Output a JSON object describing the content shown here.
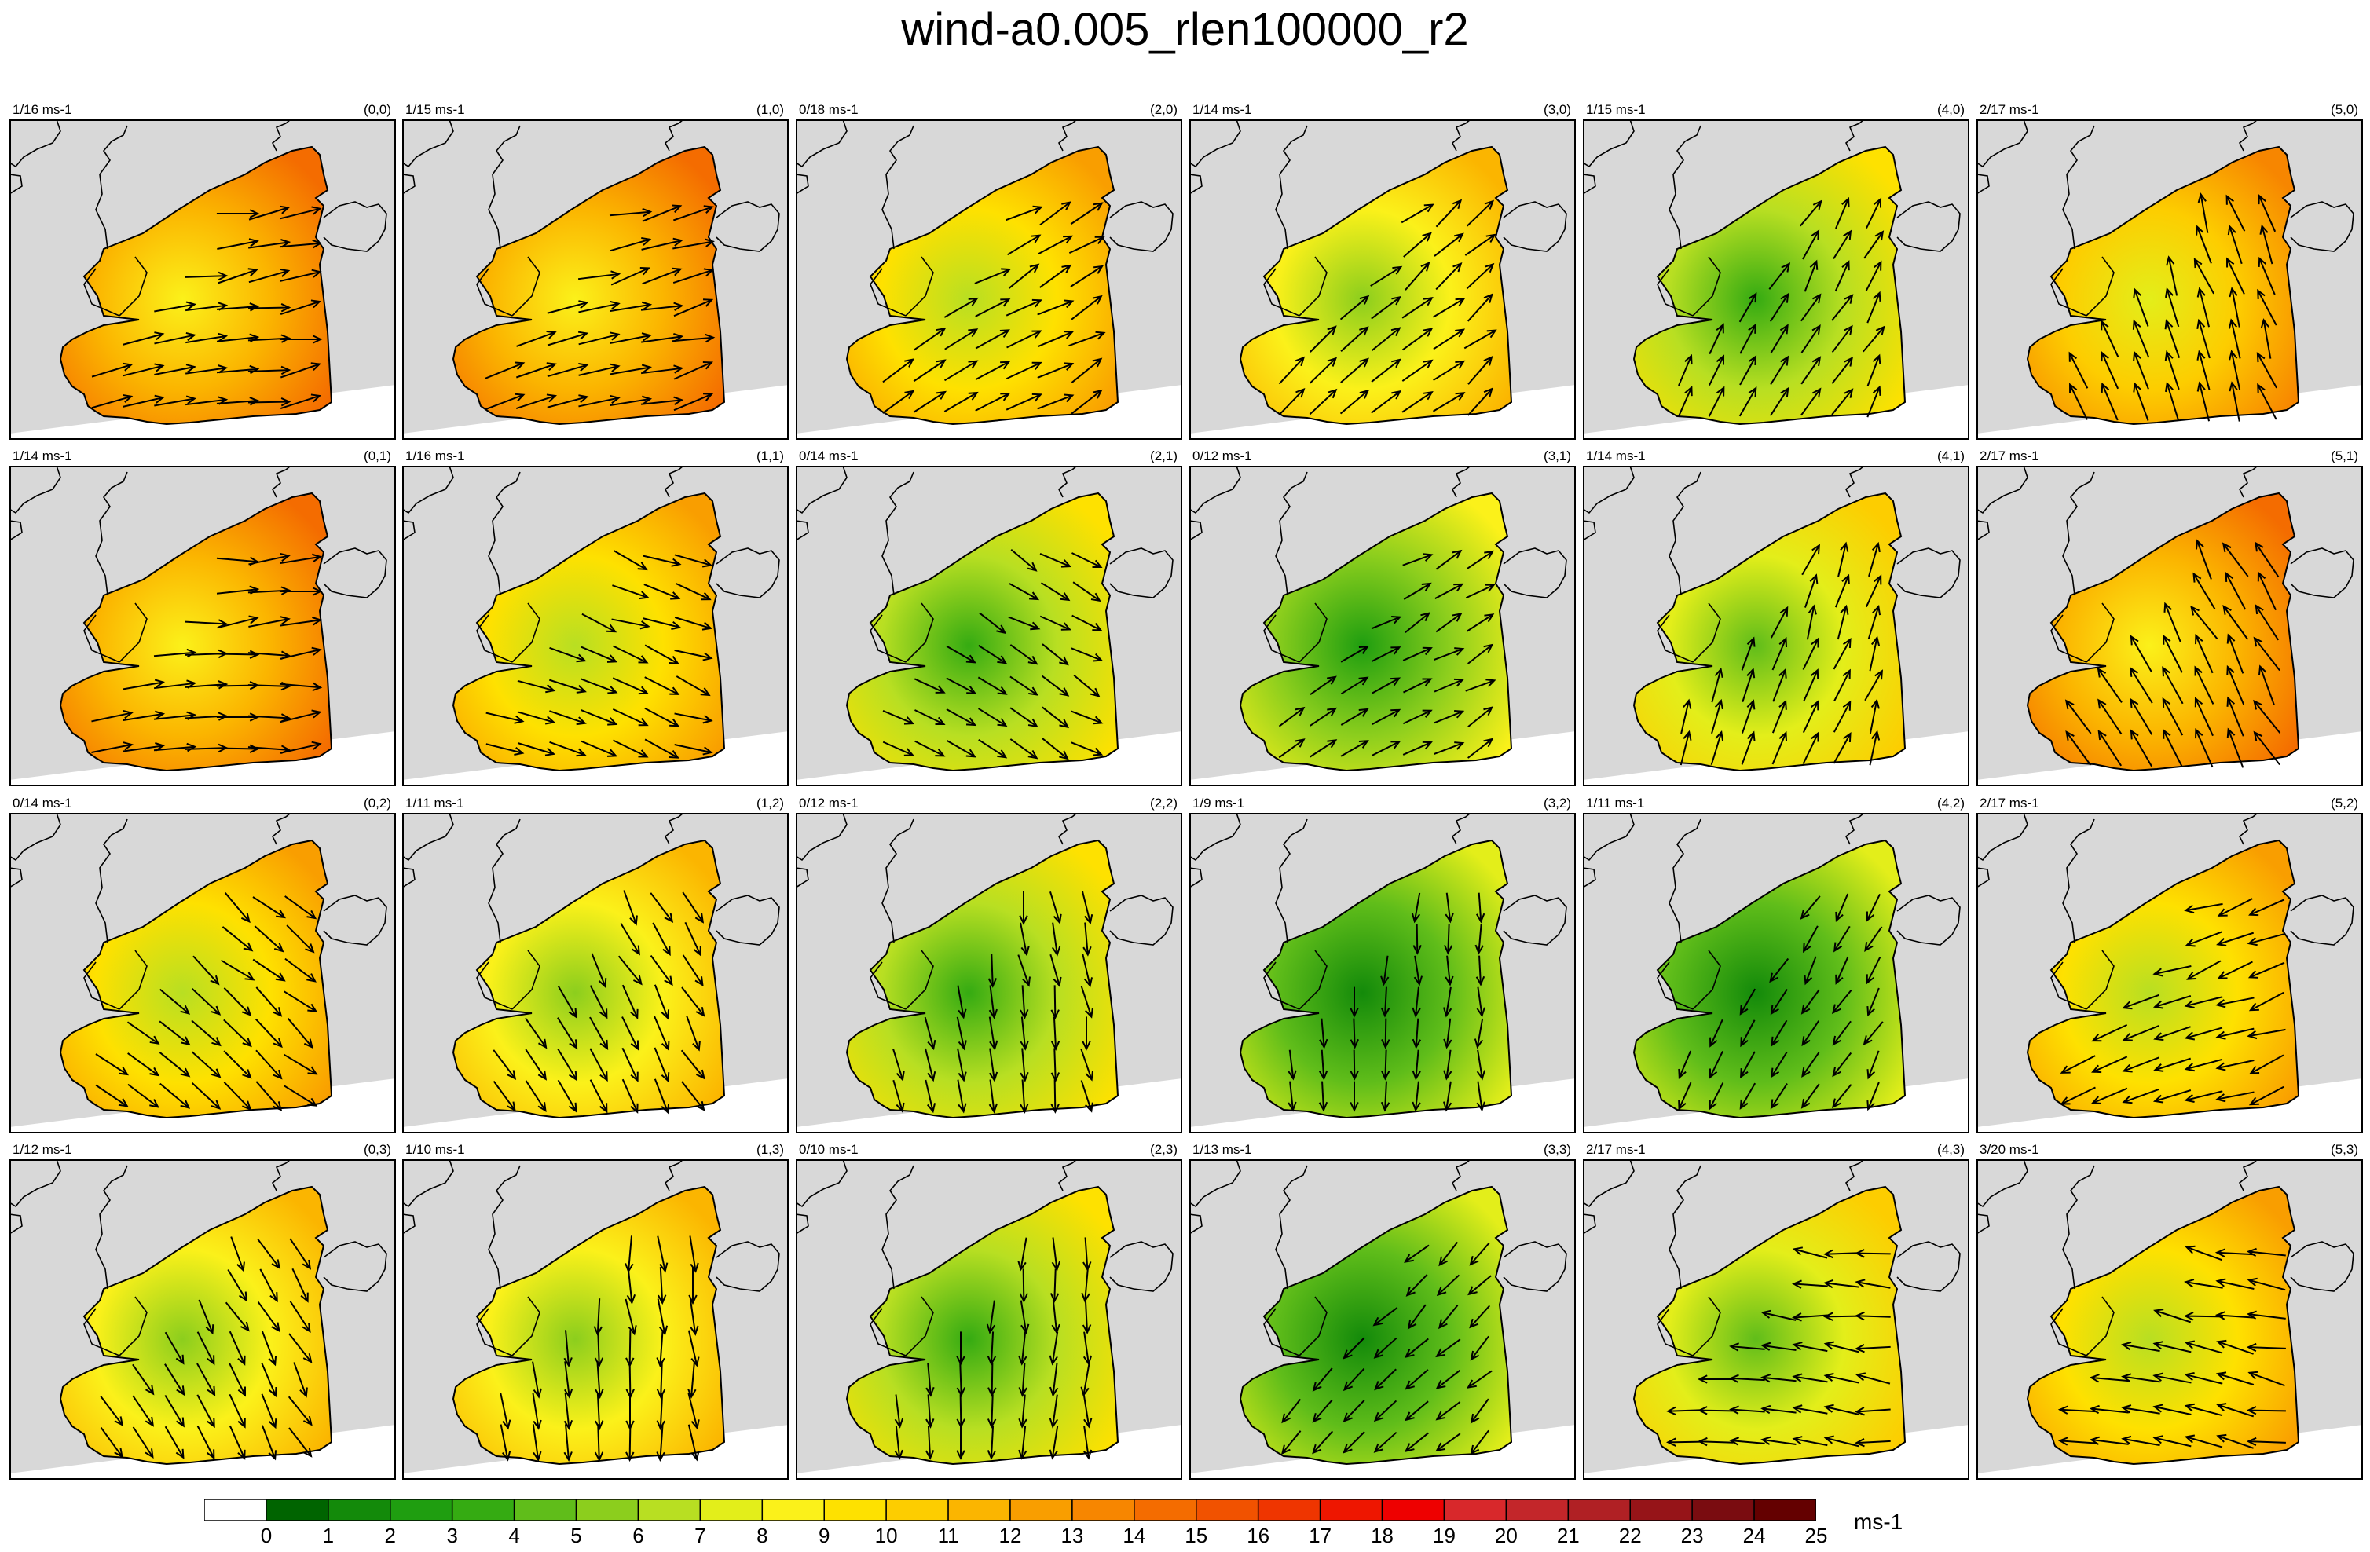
{
  "title": "wind-a0.005_rlen100000_r2",
  "chart_data": {
    "type": "heatmap",
    "title": "wind-a0.005_rlen100000_r2",
    "layout": {
      "columns": 6,
      "rows": 4
    },
    "panels": [
      {
        "index": "(0,0)",
        "range": "1/16 ms-1",
        "speed": 11,
        "dir": 10
      },
      {
        "index": "(1,0)",
        "range": "1/15 ms-1",
        "speed": 11,
        "dir": 15
      },
      {
        "index": "(2,0)",
        "range": "0/18 ms-1",
        "speed": 9,
        "dir": 30
      },
      {
        "index": "(3,0)",
        "range": "1/14 ms-1",
        "speed": 8,
        "dir": 40
      },
      {
        "index": "(4,0)",
        "range": "1/15 ms-1",
        "speed": 6,
        "dir": 60
      },
      {
        "index": "(5,0)",
        "range": "2/17 ms-1",
        "speed": 10,
        "dir": 110
      },
      {
        "index": "(0,1)",
        "range": "1/14 ms-1",
        "speed": 11,
        "dir": 5
      },
      {
        "index": "(1,1)",
        "range": "1/16 ms-1",
        "speed": 9,
        "dir": -20
      },
      {
        "index": "(2,1)",
        "range": "0/14 ms-1",
        "speed": 6,
        "dir": -30
      },
      {
        "index": "(3,1)",
        "range": "0/12 ms-1",
        "speed": 5,
        "dir": 30
      },
      {
        "index": "(4,1)",
        "range": "1/14 ms-1",
        "speed": 7,
        "dir": 70
      },
      {
        "index": "(5,1)",
        "range": "2/17 ms-1",
        "speed": 11,
        "dir": 120
      },
      {
        "index": "(0,2)",
        "range": "0/14 ms-1",
        "speed": 9,
        "dir": -40
      },
      {
        "index": "(1,2)",
        "range": "1/11 ms-1",
        "speed": 8,
        "dir": -60
      },
      {
        "index": "(2,2)",
        "range": "0/12 ms-1",
        "speed": 6,
        "dir": -80
      },
      {
        "index": "(3,2)",
        "range": "1/9 ms-1",
        "speed": 4,
        "dir": -90
      },
      {
        "index": "(4,2)",
        "range": "1/11 ms-1",
        "speed": 4,
        "dir": -120
      },
      {
        "index": "(5,2)",
        "range": "2/17 ms-1",
        "speed": 9,
        "dir": -160
      },
      {
        "index": "(0,3)",
        "range": "1/12 ms-1",
        "speed": 8,
        "dir": -60
      },
      {
        "index": "(1,3)",
        "range": "1/10 ms-1",
        "speed": 8,
        "dir": -85
      },
      {
        "index": "(2,3)",
        "range": "0/10 ms-1",
        "speed": 6,
        "dir": -90
      },
      {
        "index": "(3,3)",
        "range": "1/13 ms-1",
        "speed": 4,
        "dir": -135
      },
      {
        "index": "(4,3)",
        "range": "2/17 ms-1",
        "speed": 7,
        "dir": 175
      },
      {
        "index": "(5,3)",
        "range": "3/20 ms-1",
        "speed": 9,
        "dir": 170
      }
    ],
    "colorbar": {
      "levels": [
        "0",
        "1",
        "2",
        "3",
        "4",
        "5",
        "6",
        "7",
        "8",
        "9",
        "10",
        "11",
        "12",
        "13",
        "14",
        "15",
        "16",
        "17",
        "18",
        "19",
        "20",
        "21",
        "22",
        "23",
        "24",
        "25"
      ],
      "colors": [
        "#ffffff",
        "#006400",
        "#138a0a",
        "#1f9e10",
        "#35ab12",
        "#60bd1a",
        "#8cce1d",
        "#b8df22",
        "#e3ee1a",
        "#fbf11a",
        "#fee100",
        "#fdcd00",
        "#fbb500",
        "#f99e00",
        "#f78600",
        "#f46c00",
        "#f15200",
        "#ef3500",
        "#ee1600",
        "#ee0000",
        "#d8282b",
        "#c3262a",
        "#b02024",
        "#961418",
        "#7a0c10",
        "#640000"
      ],
      "units": "ms-1"
    }
  }
}
